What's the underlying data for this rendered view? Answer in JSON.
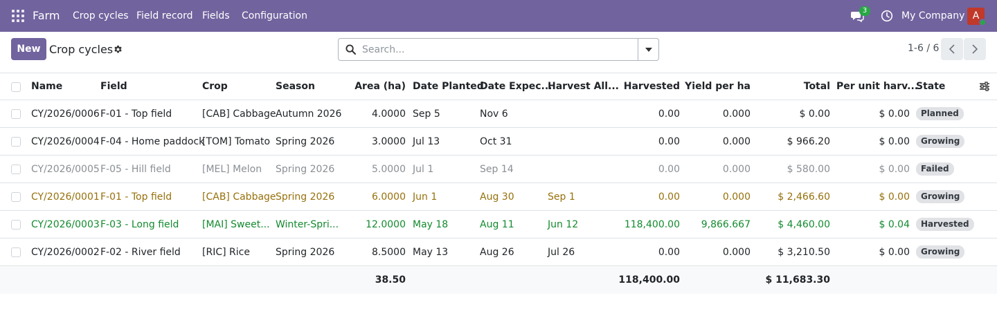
{
  "navbar": {
    "brand": "Farm",
    "menu": [
      "Crop cycles",
      "Field record",
      "Fields",
      "Configuration"
    ],
    "chat_count": "3",
    "company": "My Company",
    "avatar_initial": "A"
  },
  "control": {
    "new_label": "New",
    "title": "Crop cycles",
    "search_placeholder": "Search...",
    "pager": "1-6 / 6"
  },
  "table": {
    "columns": [
      "Name",
      "Field",
      "Crop",
      "Season",
      "Area (ha)",
      "Date Planted",
      "Date Expec...",
      "Harvest All...",
      "Harvested",
      "Yield per ha",
      "Total",
      "Per unit harv...",
      "State"
    ],
    "rows": [
      {
        "name": "CY/2026/0006",
        "field": "F-01 - Top field",
        "crop": "[CAB] Cabbage",
        "season": "Autumn 2026",
        "area": "4.0000",
        "planted": "Sep 5",
        "expected": "Nov 6",
        "harvest_all": "",
        "harvested": "0.00",
        "yield": "0.000",
        "total": "$ 0.00",
        "per_unit": "$ 0.00",
        "state": "Planned",
        "tone": "normal"
      },
      {
        "name": "CY/2026/0004",
        "field": "F-04 - Home paddock",
        "crop": "[TOM] Tomato",
        "season": "Spring 2026",
        "area": "3.0000",
        "planted": "Jul 13",
        "expected": "Oct 31",
        "harvest_all": "",
        "harvested": "0.00",
        "yield": "0.000",
        "total": "$ 966.20",
        "per_unit": "$ 0.00",
        "state": "Growing",
        "tone": "normal"
      },
      {
        "name": "CY/2026/0005",
        "field": "F-05 - Hill field",
        "crop": "[MEL] Melon",
        "season": "Spring 2026",
        "area": "5.0000",
        "planted": "Jul 1",
        "expected": "Sep 14",
        "harvest_all": "",
        "harvested": "0.00",
        "yield": "0.000",
        "total": "$ 580.00",
        "per_unit": "$ 0.00",
        "state": "Failed",
        "tone": "muted"
      },
      {
        "name": "CY/2026/0001",
        "field": "F-01 - Top field",
        "crop": "[CAB] Cabbage",
        "season": "Spring 2026",
        "area": "6.0000",
        "planted": "Jun 1",
        "expected": "Aug 30",
        "harvest_all": "Sep 1",
        "harvested": "0.00",
        "yield": "0.000",
        "total": "$ 2,466.60",
        "per_unit": "$ 0.00",
        "state": "Growing",
        "tone": "warn"
      },
      {
        "name": "CY/2026/0003",
        "field": "F-03 - Long field",
        "crop": "[MAI] Sweet...",
        "season": "Winter-Spri...",
        "area": "12.0000",
        "planted": "May 18",
        "expected": "Aug 11",
        "harvest_all": "Jun 12",
        "harvested": "118,400.00",
        "yield": "9,866.667",
        "total": "$ 4,460.00",
        "per_unit": "$ 0.04",
        "state": "Harvested",
        "tone": "success"
      },
      {
        "name": "CY/2026/0002",
        "field": "F-02 - River field",
        "crop": "[RIC] Rice",
        "season": "Spring 2026",
        "area": "8.5000",
        "planted": "May 13",
        "expected": "Aug 26",
        "harvest_all": "Jul 26",
        "harvested": "0.00",
        "yield": "0.000",
        "total": "$ 3,210.50",
        "per_unit": "$ 0.00",
        "state": "Growing",
        "tone": "normal"
      }
    ],
    "totals": {
      "area": "38.50",
      "harvested": "118,400.00",
      "total": "$ 11,683.30"
    }
  },
  "colors": {
    "brand": "#71639e",
    "muted": "#8a8f94",
    "warning": "#96700b",
    "success": "#138a2e"
  }
}
